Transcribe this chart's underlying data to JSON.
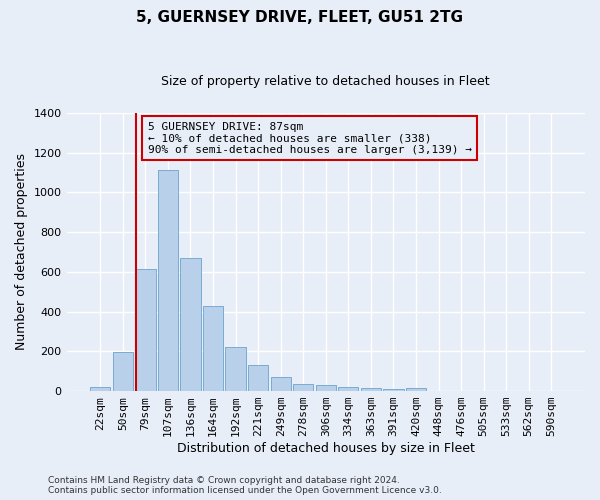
{
  "title": "5, GUERNSEY DRIVE, FLEET, GU51 2TG",
  "subtitle": "Size of property relative to detached houses in Fleet",
  "xlabel": "Distribution of detached houses by size in Fleet",
  "ylabel": "Number of detached properties",
  "footer": "Contains HM Land Registry data © Crown copyright and database right 2024.\nContains public sector information licensed under the Open Government Licence v3.0.",
  "bar_color": "#b8d0ea",
  "bar_edge_color": "#6ba3cc",
  "bar_categories": [
    "22sqm",
    "50sqm",
    "79sqm",
    "107sqm",
    "136sqm",
    "164sqm",
    "192sqm",
    "221sqm",
    "249sqm",
    "278sqm",
    "306sqm",
    "334sqm",
    "363sqm",
    "391sqm",
    "420sqm",
    "448sqm",
    "476sqm",
    "505sqm",
    "533sqm",
    "562sqm",
    "590sqm"
  ],
  "bar_values": [
    20,
    195,
    615,
    1110,
    670,
    430,
    220,
    130,
    72,
    35,
    30,
    20,
    15,
    10,
    14,
    0,
    0,
    0,
    0,
    0,
    0
  ],
  "ylim": [
    0,
    1400
  ],
  "yticks": [
    0,
    200,
    400,
    600,
    800,
    1000,
    1200,
    1400
  ],
  "vline_position": 1.575,
  "vline_color": "#cc0000",
  "annotation_text": "5 GUERNSEY DRIVE: 87sqm\n← 10% of detached houses are smaller (338)\n90% of semi-detached houses are larger (3,139) →",
  "annotation_box_edgecolor": "#cc0000",
  "background_color": "#e8eef8",
  "grid_color": "#ffffff",
  "title_fontsize": 11,
  "subtitle_fontsize": 9,
  "ylabel_fontsize": 9,
  "xlabel_fontsize": 9,
  "tick_fontsize": 8,
  "annotation_fontsize": 8
}
